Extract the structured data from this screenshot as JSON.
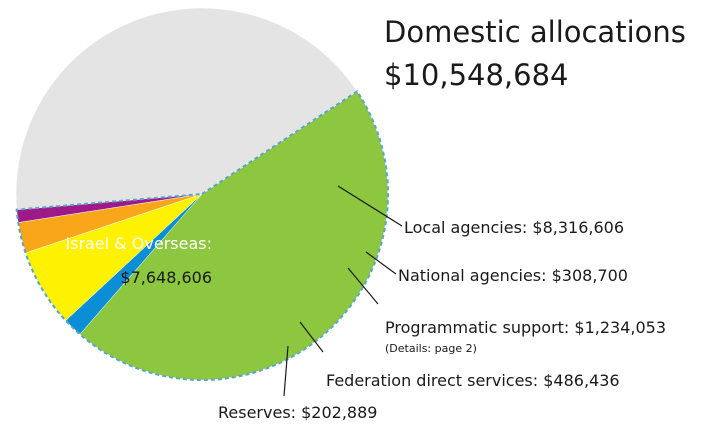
{
  "chart_data": {
    "type": "pie",
    "title": "Domestic allocations",
    "title_value": "$10,548,684",
    "slices": [
      {
        "name": "Local agencies",
        "label": "Local agencies: $8,316,606",
        "value": 8316606,
        "color": "#8dc63f"
      },
      {
        "name": "National agencies",
        "label": "National agencies: $308,700",
        "value": 308700,
        "color": "#0a8fd6"
      },
      {
        "name": "Programmatic support",
        "label": "Programmatic support: $1,234,053",
        "note": "(Details: page 2)",
        "value": 1234053,
        "color": "#fff200"
      },
      {
        "name": "Federation direct services",
        "label": "Federation direct services: $486,436",
        "value": 486436,
        "color": "#f9a61b"
      },
      {
        "name": "Reserves",
        "label": "Reserves: $202,889",
        "value": 202889,
        "color": "#a0198a"
      },
      {
        "name": "Israel & Overseas",
        "label": "Israel & Overseas:",
        "value_label": "$7,648,606",
        "value": 7648606,
        "color": "#e4e4e4",
        "label_color": "#ffffff"
      }
    ]
  }
}
